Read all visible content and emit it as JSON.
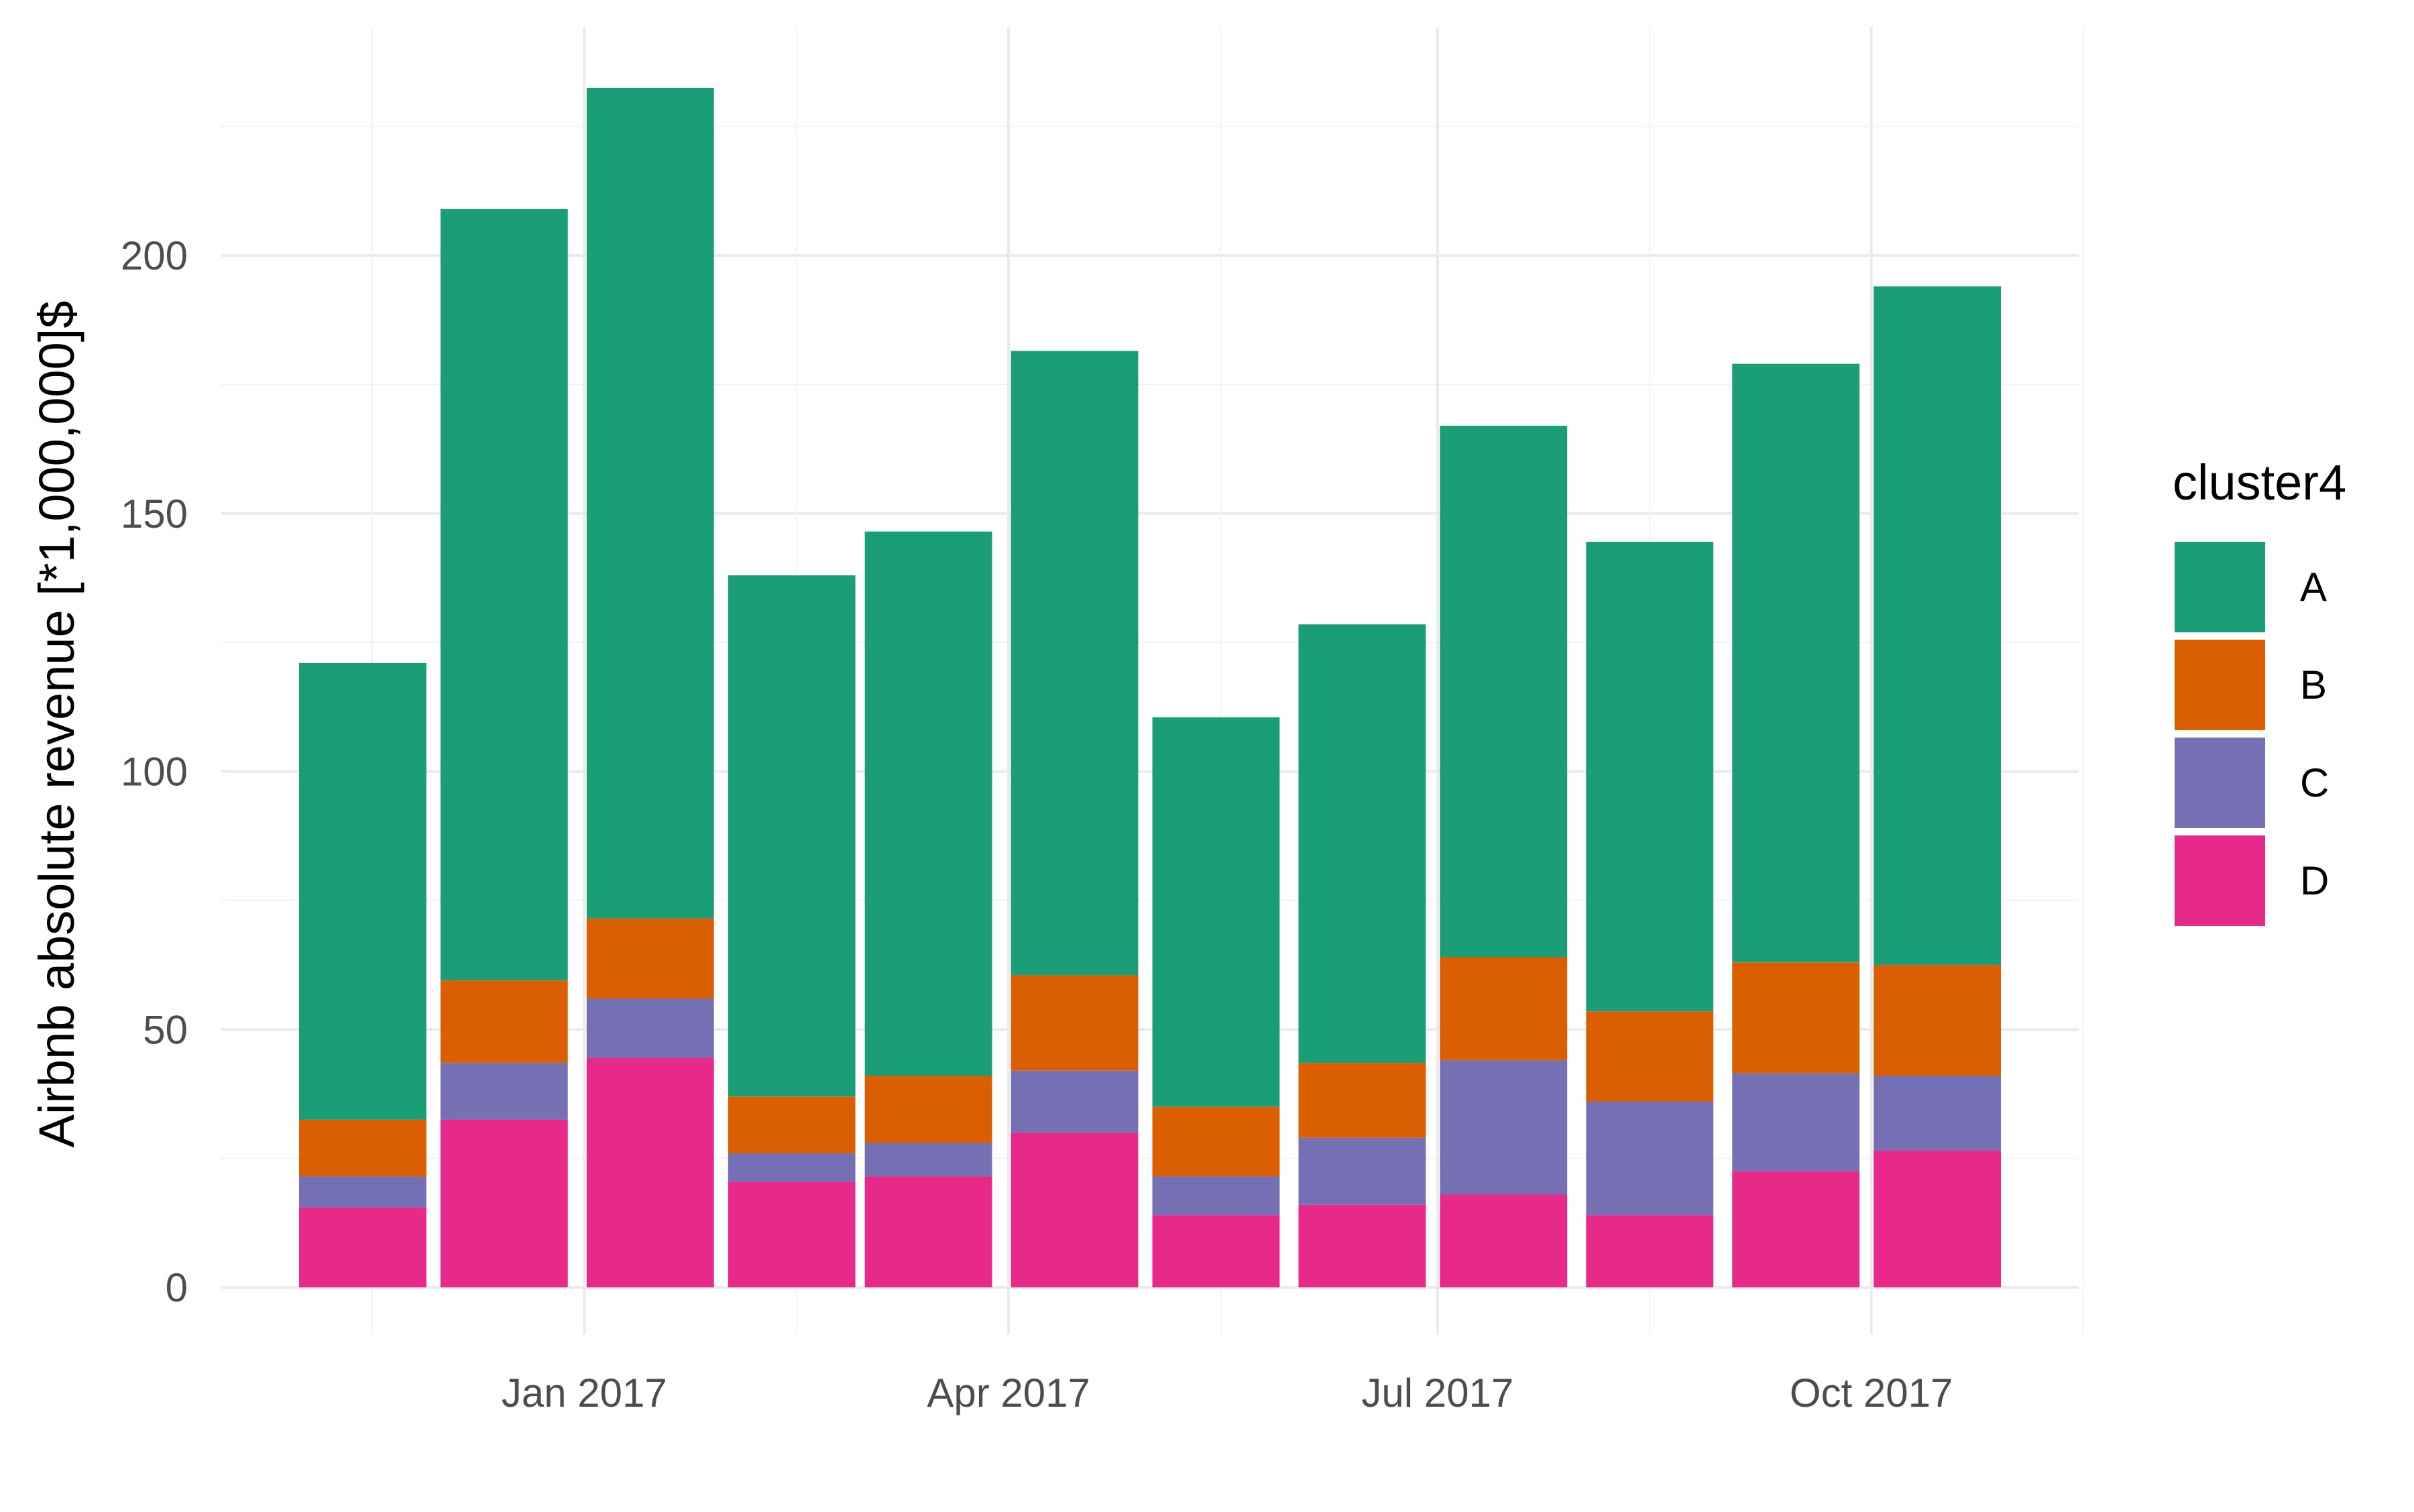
{
  "chart_data": {
    "type": "bar",
    "stacked": true,
    "ylabel": "Airbnb absolute revenue [*1,000,000]$",
    "xlabel": "",
    "ylim": [
      0,
      240
    ],
    "y_ticks": [
      0,
      50,
      100,
      150,
      200
    ],
    "x_ticks": [
      {
        "label": "Jan 2017",
        "date": "2017-01-01"
      },
      {
        "label": "Apr 2017",
        "date": "2017-04-01"
      },
      {
        "label": "Jul 2017",
        "date": "2017-07-01"
      },
      {
        "label": "Oct 2017",
        "date": "2017-10-01"
      }
    ],
    "x_range": [
      "2016-10-16",
      "2017-11-14"
    ],
    "categories": [
      "2016-11",
      "2016-12",
      "2017-01",
      "2017-02",
      "2017-03",
      "2017-04",
      "2017-05",
      "2017-06",
      "2017-07",
      "2017-08",
      "2017-09",
      "2017-10"
    ],
    "bar_centers": [
      "2016-11-15",
      "2016-12-15",
      "2017-01-15",
      "2017-02-14",
      "2017-03-15",
      "2017-04-15",
      "2017-05-15",
      "2017-06-15",
      "2017-07-15",
      "2017-08-15",
      "2017-09-15",
      "2017-10-15"
    ],
    "series": [
      {
        "name": "D",
        "color": "#E7298A",
        "values": [
          15.5,
          32.5,
          44.5,
          20.5,
          21.5,
          30.0,
          14.0,
          16.0,
          18.0,
          14.0,
          22.5,
          26.5
        ]
      },
      {
        "name": "C",
        "color": "#7570B3",
        "values": [
          6.0,
          11.0,
          11.5,
          5.5,
          6.5,
          12.0,
          7.5,
          13.0,
          26.0,
          22.0,
          19.0,
          14.5
        ]
      },
      {
        "name": "B",
        "color": "#D95F02",
        "values": [
          11.0,
          16.0,
          15.5,
          11.0,
          13.0,
          18.5,
          13.5,
          14.5,
          20.0,
          17.5,
          21.5,
          21.5
        ]
      },
      {
        "name": "A",
        "color": "#1B9E77",
        "values": [
          88.5,
          149.5,
          161.0,
          101.0,
          105.5,
          121.0,
          75.5,
          85.0,
          103.0,
          91.0,
          116.0,
          131.5
        ]
      }
    ],
    "legend": {
      "title": "cluster4",
      "position": "right",
      "entries": [
        {
          "label": "A",
          "color": "#1B9E77"
        },
        {
          "label": "B",
          "color": "#D95F02"
        },
        {
          "label": "C",
          "color": "#7570B3"
        },
        {
          "label": "D",
          "color": "#E7298A"
        }
      ]
    },
    "grid": true,
    "theme": "minimal"
  }
}
